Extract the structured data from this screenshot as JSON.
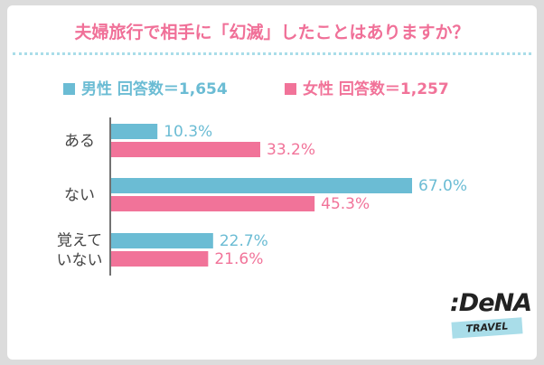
{
  "title": "夫婦旅行で相手に「幻滅」したことはありますか？",
  "legend": {
    "male": "男性  回答数＝1,654",
    "female": "女性  回答数＝1,257"
  },
  "logo": {
    "main": ":DeNA",
    "sub": "TRAVEL"
  },
  "colors": {
    "male": "#6bbcd4",
    "female": "#f17399",
    "title": "#f07098",
    "dotline": "#a9dde9"
  },
  "chart_data": {
    "type": "bar",
    "orientation": "horizontal",
    "categories": [
      [
        "ある"
      ],
      [
        "ない"
      ],
      [
        "覚えて",
        "いない"
      ]
    ],
    "series": [
      {
        "name": "男性",
        "values": [
          10.3,
          67.0,
          22.7
        ],
        "labels": [
          "10.3%",
          "67.0%",
          "22.7%"
        ]
      },
      {
        "name": "女性",
        "values": [
          33.2,
          45.3,
          21.6
        ],
        "labels": [
          "33.2%",
          "45.3%",
          "21.6%"
        ]
      }
    ],
    "title": "夫婦旅行で相手に「幻滅」したことはありますか？",
    "xlim": [
      0,
      70
    ],
    "grid": false,
    "legend_position": "top"
  }
}
